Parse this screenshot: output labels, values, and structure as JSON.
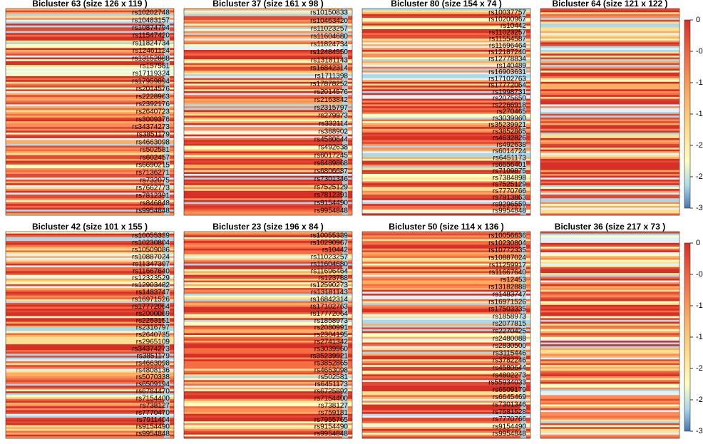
{
  "chart_data": [
    {
      "type": "heatmap",
      "title": "Bicluster 63 (size 126 x 119 )",
      "row_labels": [
        "rs10202748",
        "rs10483157",
        "rs10874794",
        "rs11547420",
        "rs11824734",
        "rs12461124",
        "rs13152888",
        "rs157581",
        "rs17119324",
        "rs17959894",
        "rs2014576",
        "rs2228963",
        "rs2392176",
        "rs2640723",
        "rs3009376",
        "rs34374273",
        "rs3851179",
        "rs4663098",
        "rs502581",
        "rs602457",
        "rs6690215",
        "rs7136271",
        "rs732075",
        "rs7662773",
        "rs7812391",
        "rs846848",
        "rs9954848"
      ]
    },
    {
      "type": "heatmap",
      "title": "Bicluster 37 (size 161 x 98 )",
      "row_labels": [
        "rs10150833",
        "rs10463420",
        "rs11023257",
        "rs11604680",
        "rs11824734",
        "rs12484550",
        "rs13181143",
        "rs16842314",
        "rs1711398",
        "rs17878252",
        "rs2014576",
        "rs2163842",
        "rs2315797",
        "rs279973",
        "rs332114",
        "rs388902",
        "rs4580644",
        "rs492638",
        "rs6017245",
        "rs6489868",
        "rs6806687",
        "rs7301346",
        "rs7525129",
        "rs7812391",
        "rs9154490",
        "rs9954848"
      ]
    },
    {
      "type": "heatmap",
      "title": "Bicluster 80 (size 154 x 74 )",
      "row_labels": [
        "rs10037757",
        "rs10200967",
        "rs10442",
        "rs11023257",
        "rs11554587",
        "rs11696464",
        "rs12187240",
        "rs12778834",
        "rs140489",
        "rs16903631",
        "rs17102763",
        "rs17772064",
        "rs1998731",
        "rs2075650",
        "rs2266918",
        "rs270465",
        "rs3039960",
        "rs35239921",
        "rs3852865",
        "rs4632826",
        "rs492638",
        "rs6014724",
        "rs6451173",
        "rs6656401",
        "rs7109875",
        "rs7384898",
        "rs7525129",
        "rs7770766",
        "rs7913863",
        "rs9296559",
        "rs9954848"
      ]
    },
    {
      "type": "heatmap",
      "title": "Bicluster 64 (size 121 x 122 )",
      "row_labels": [],
      "colorbar_ticks": [
        0,
        -0.5,
        -1,
        -1.5,
        -2,
        -2.5,
        -3
      ]
    },
    {
      "type": "heatmap",
      "title": "Bicluster 42 (size 101 x 155 )",
      "row_labels": [
        "rs10055339",
        "rs10230804",
        "rs10509086",
        "rs10887024",
        "rs11347397",
        "rs11667640",
        "rs12323529",
        "rs12903482",
        "rs1483747",
        "rs16971526",
        "rs17772064",
        "rs2000069",
        "rs2253151",
        "rs2316797",
        "rs2640735",
        "rs2965109",
        "rs34374273",
        "rs3851179",
        "rs4663098",
        "rs4808136",
        "rs5070338",
        "rs6509194",
        "rs6784470",
        "rs7154400",
        "rs738127",
        "rs7770470",
        "rs7911404",
        "rs9154490",
        "rs9954848"
      ]
    },
    {
      "type": "heatmap",
      "title": "Bicluster 23 (size 196 x 84 )",
      "row_labels": [
        "rs10055339",
        "rs10290967",
        "rs10442",
        "rs11023257",
        "rs11604680",
        "rs11696464",
        "rs123788",
        "rs12590273",
        "rs13181143",
        "rs16842314",
        "rs17102763",
        "rs17772064",
        "rs1858973",
        "rs2080991",
        "rs2304195",
        "rs2741342",
        "rs3039960",
        "rs35239921",
        "rs3852865",
        "rs4663098",
        "rs502581",
        "rs6451173",
        "rs6725892",
        "rs7154400",
        "rs738127",
        "rs759181",
        "rs7955765",
        "rs9154490",
        "rs9954848"
      ]
    },
    {
      "type": "heatmap",
      "title": "Bicluster 50 (size 114 x 136 )",
      "row_labels": [
        "rs10056636",
        "rs10230804",
        "rs10772335",
        "rs10887024",
        "rs11259917",
        "rs11667640",
        "rs12453",
        "rs13182888",
        "rs1483747",
        "rs16971526",
        "rs17503335",
        "rs1858973",
        "rs2077815",
        "rs2270425",
        "rs2480088",
        "rs2830500",
        "rs3115446",
        "rs3782246",
        "rs4580644",
        "rs4802273",
        "rs55934033",
        "rs6509179",
        "rs6645469",
        "rs7301346",
        "rs7581528",
        "rs7770766",
        "rs9154490",
        "rs9954848"
      ]
    },
    {
      "type": "heatmap",
      "title": "Bicluster 36 (size 217 x 73 )",
      "row_labels": [],
      "colorbar_ticks": [
        0,
        -0.5,
        -1,
        -1.5,
        -2,
        -2.5,
        -3
      ]
    }
  ]
}
